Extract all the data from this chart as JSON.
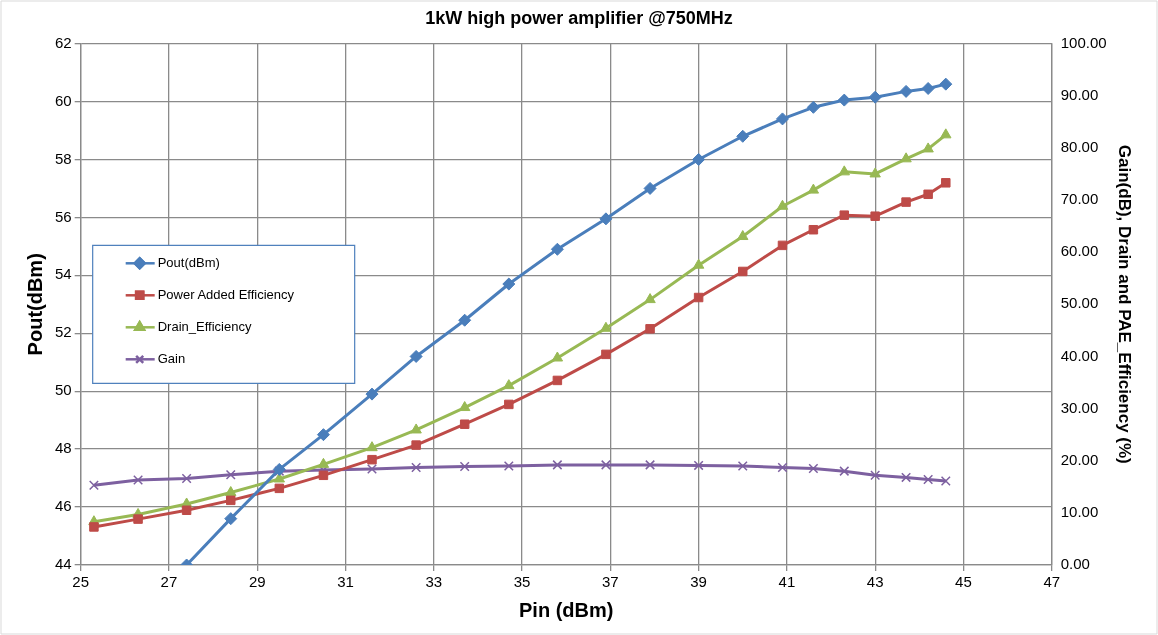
{
  "chart_data": {
    "type": "line",
    "title": "1kW high power amplifier @750MHz",
    "xlabel": "Pin (dBm)",
    "ylabel": "Pout(dBm)",
    "y2label": "Gain(dB), Drain and PAE_Efficiency (%)",
    "xlim": [
      25,
      47
    ],
    "xticks": [
      25,
      27,
      29,
      31,
      33,
      35,
      37,
      39,
      41,
      43,
      45,
      47
    ],
    "ylim": [
      44,
      62
    ],
    "yticks": [
      44,
      46,
      48,
      50,
      52,
      54,
      56,
      58,
      60,
      62
    ],
    "y2lim": [
      0,
      100
    ],
    "y2ticks": [
      {
        "value": 0,
        "label": "0.00"
      },
      {
        "value": 10,
        "label": "10.00"
      },
      {
        "value": 20,
        "label": "20.00"
      },
      {
        "value": 30,
        "label": "30.00"
      },
      {
        "value": 40,
        "label": "40.00"
      },
      {
        "value": 50,
        "label": "50.00"
      },
      {
        "value": 60,
        "label": "60.00"
      },
      {
        "value": 70,
        "label": "70.00"
      },
      {
        "value": 80,
        "label": "80.00"
      },
      {
        "value": 90,
        "label": "90.00"
      },
      {
        "value": 100,
        "label": "100.00"
      }
    ],
    "grid": true,
    "legend": "left",
    "line_style": "solid",
    "series": [
      {
        "name": "Pout(dBm)",
        "color": "#4a7ebb",
        "marker": "diamond",
        "x": [
          27.4,
          28.4,
          29.5,
          30.5,
          31.6,
          32.6,
          33.7,
          34.7,
          35.8,
          36.9,
          37.9,
          39,
          40,
          40.9,
          41.6,
          42.3,
          43,
          43.7,
          44.2,
          44.6
        ],
        "values": [
          44,
          45.6,
          47.3,
          48.5,
          49.9,
          51.2,
          52.45,
          53.7,
          54.9,
          55.95,
          57,
          58,
          58.8,
          59.4,
          59.8,
          60.05,
          60.15,
          60.35,
          60.45,
          60.6
        ]
      },
      {
        "name": "Power Added Efficiency",
        "color": "#be4b48",
        "marker": "square",
        "axis": "y2",
        "x": [
          25.3,
          26.3,
          27.4,
          28.4,
          29.5,
          30.5,
          31.6,
          32.6,
          33.7,
          34.7,
          35.8,
          36.9,
          37.9,
          39,
          40,
          40.9,
          41.6,
          42.3,
          43,
          43.7,
          44.2,
          44.6
        ],
        "values": [
          7.3,
          8.8,
          10.5,
          12.4,
          14.7,
          17.2,
          20.2,
          23,
          27,
          30.8,
          35.4,
          40.4,
          45.3,
          51.3,
          56.3,
          61.3,
          64.3,
          67.1,
          66.9,
          69.6,
          71.1,
          73.3
        ]
      },
      {
        "name": "Drain_Efficiency",
        "color": "#98b954",
        "marker": "triangle",
        "axis": "y2",
        "x": [
          25.3,
          26.3,
          27.4,
          28.4,
          29.5,
          30.5,
          31.6,
          32.6,
          33.7,
          34.7,
          35.8,
          36.9,
          37.9,
          39,
          40,
          40.9,
          41.6,
          42.3,
          43,
          43.7,
          44.2,
          44.6
        ],
        "values": [
          8.3,
          9.7,
          11.7,
          13.9,
          16.5,
          19.3,
          22.5,
          25.9,
          30.2,
          34.4,
          39.7,
          45.4,
          50.9,
          57.5,
          63,
          68.8,
          71.9,
          75.4,
          75,
          77.9,
          79.8,
          82.5
        ]
      },
      {
        "name": "Gain",
        "color": "#7d60a0",
        "marker": "cross",
        "axis": "y2",
        "x": [
          25.3,
          26.3,
          27.4,
          28.4,
          29.5,
          30.5,
          31.6,
          32.6,
          33.7,
          34.7,
          35.8,
          36.9,
          37.9,
          39,
          40,
          40.9,
          41.6,
          42.3,
          43,
          43.7,
          44.2,
          44.6
        ],
        "values": [
          15.3,
          16.3,
          16.6,
          17.3,
          18,
          18.2,
          18.4,
          18.7,
          18.9,
          19,
          19.2,
          19.2,
          19.2,
          19.1,
          19,
          18.7,
          18.5,
          18,
          17.2,
          16.8,
          16.4,
          16.1
        ]
      }
    ]
  }
}
